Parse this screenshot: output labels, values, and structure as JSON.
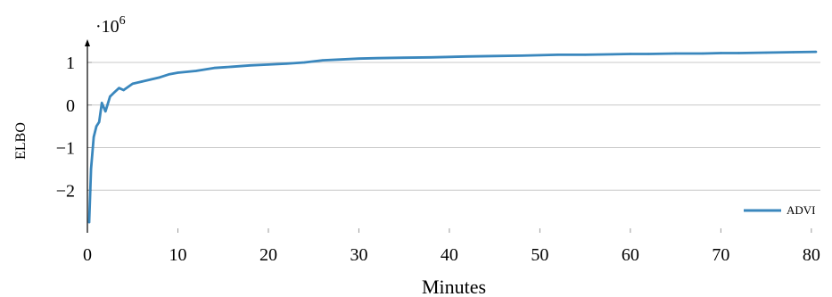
{
  "chart_data": {
    "type": "line",
    "title": "",
    "xlabel": "Minutes",
    "ylabel": "ELBO",
    "y_scale_factor_label": "·10",
    "y_scale_factor_exponent": "6",
    "xlim": [
      0,
      81
    ],
    "ylim": [
      -3.0,
      1.7
    ],
    "x_ticks": [
      0,
      10,
      20,
      30,
      40,
      50,
      60,
      70,
      80
    ],
    "x_tick_labels": [
      "0",
      "10",
      "20",
      "30",
      "40",
      "50",
      "60",
      "70",
      "80"
    ],
    "y_ticks": [
      -2,
      -1,
      0,
      1
    ],
    "y_tick_labels": [
      "−2",
      "−1",
      "0",
      "1"
    ],
    "grid": "horizontal",
    "legend_position": "bottom-right",
    "series": [
      {
        "name": "ADVI",
        "color": "#3a87bd",
        "x": [
          0.2,
          0.4,
          0.7,
          1.0,
          1.3,
          1.6,
          2.0,
          2.5,
          3.0,
          3.5,
          4.0,
          5.0,
          6.0,
          7.0,
          8.0,
          9.0,
          10.0,
          12.0,
          14.0,
          16.0,
          18.0,
          20.0,
          22.0,
          24.0,
          26.0,
          28.0,
          30.0,
          32.0,
          35.0,
          38.0,
          40.0,
          42.0,
          45.0,
          48.0,
          50.0,
          52.0,
          55.0,
          58.0,
          60.0,
          62.0,
          65.0,
          68.0,
          70.0,
          72.0,
          75.0,
          78.0,
          80.5
        ],
        "y": [
          -2.75,
          -1.5,
          -0.75,
          -0.5,
          -0.4,
          0.05,
          -0.15,
          0.2,
          0.3,
          0.4,
          0.35,
          0.5,
          0.55,
          0.6,
          0.65,
          0.72,
          0.76,
          0.8,
          0.87,
          0.9,
          0.93,
          0.95,
          0.97,
          1.0,
          1.05,
          1.07,
          1.09,
          1.1,
          1.11,
          1.12,
          1.13,
          1.14,
          1.15,
          1.16,
          1.17,
          1.18,
          1.18,
          1.19,
          1.2,
          1.2,
          1.21,
          1.21,
          1.22,
          1.22,
          1.23,
          1.24,
          1.25
        ]
      }
    ]
  }
}
